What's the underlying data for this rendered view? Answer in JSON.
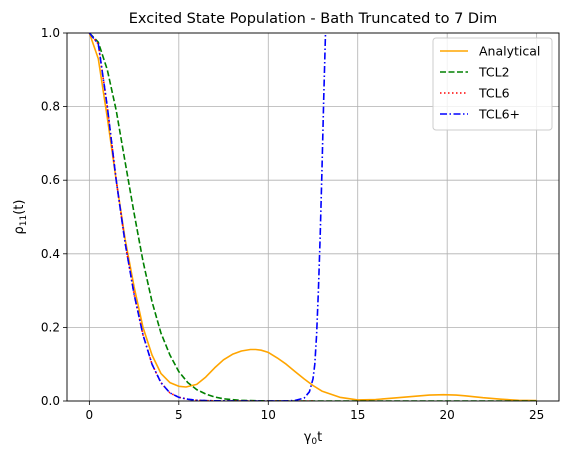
{
  "chart_data": {
    "type": "line",
    "title": "Excited State Population - Bath Truncated to 7 Dim",
    "xlabel": "γ₀t",
    "ylabel": "ρ₁₁(t)",
    "xlim": [
      -1.25,
      26.25
    ],
    "ylim": [
      0,
      1
    ],
    "xticks": [
      "0",
      "5",
      "10",
      "15",
      "20",
      "25"
    ],
    "xtick_values": [
      0,
      5,
      10,
      15,
      20,
      25
    ],
    "yticks": [
      "0.0",
      "0.2",
      "0.4",
      "0.6",
      "0.8",
      "1.0"
    ],
    "ytick_values": [
      0,
      0.2,
      0.4,
      0.6,
      0.8,
      1.0
    ],
    "grid": true,
    "legend_position": "top-right",
    "series": [
      {
        "name": "Analytical",
        "color": "#ffa500",
        "style": "solid",
        "x": [
          0,
          0.5,
          1,
          1.5,
          2,
          2.5,
          3,
          3.5,
          4,
          4.5,
          5,
          5.4,
          6,
          6.5,
          7,
          7.5,
          8,
          8.5,
          9,
          9.3,
          9.6,
          10,
          10.5,
          11,
          11.5,
          12,
          12.5,
          13,
          14,
          15,
          16,
          17,
          18,
          19,
          19.8,
          20.5,
          21,
          22,
          23,
          24,
          25
        ],
        "y": [
          1.0,
          0.93,
          0.77,
          0.6,
          0.44,
          0.31,
          0.2,
          0.125,
          0.075,
          0.05,
          0.04,
          0.038,
          0.045,
          0.065,
          0.09,
          0.112,
          0.127,
          0.136,
          0.14,
          0.14,
          0.138,
          0.132,
          0.117,
          0.1,
          0.08,
          0.06,
          0.042,
          0.027,
          0.01,
          0.003,
          0.004,
          0.008,
          0.012,
          0.016,
          0.017,
          0.016,
          0.014,
          0.009,
          0.005,
          0.002,
          0.001
        ]
      },
      {
        "name": "TCL2",
        "color": "#008000",
        "style": "dashed",
        "x": [
          0,
          0.5,
          1,
          1.5,
          2,
          2.5,
          3,
          3.5,
          4,
          4.5,
          5,
          5.5,
          6,
          6.5,
          7,
          7.5,
          8,
          8.5,
          9,
          9.5,
          10,
          11,
          12,
          13,
          14,
          15,
          16,
          18,
          20,
          22,
          25
        ],
        "y": [
          1.0,
          0.975,
          0.9,
          0.79,
          0.65,
          0.51,
          0.38,
          0.27,
          0.185,
          0.125,
          0.08,
          0.05,
          0.031,
          0.019,
          0.011,
          0.006,
          0.0035,
          0.002,
          0.001,
          0.0006,
          0.0003,
          0.0001,
          5e-05,
          2e-05,
          1e-05,
          0,
          0,
          0,
          0,
          0,
          0
        ]
      },
      {
        "name": "TCL6",
        "color": "#ff0000",
        "style": "dotted",
        "x": [
          0,
          0.5,
          1,
          1.5,
          2,
          2.5,
          3,
          3.5,
          4,
          4.5,
          5,
          5.5,
          6,
          6.5,
          7,
          8,
          9,
          10,
          11,
          12,
          12.5
        ],
        "y": [
          1.0,
          0.97,
          0.8,
          0.6,
          0.43,
          0.29,
          0.18,
          0.1,
          0.05,
          0.022,
          0.01,
          0.005,
          0.002,
          0.001,
          0.0005,
          0.0002,
          0.0001,
          5e-05,
          0,
          0,
          0
        ]
      },
      {
        "name": "TCL6+",
        "color": "#0000ff",
        "style": "dashdot",
        "x": [
          0,
          0.5,
          1,
          1.5,
          2,
          2.5,
          3,
          3.5,
          4,
          4.5,
          5,
          5.5,
          6,
          6.5,
          7,
          8,
          9,
          10,
          11,
          11.5,
          12,
          12.3,
          12.5,
          12.6,
          12.7,
          12.8,
          12.9,
          13.0,
          13.1,
          13.2
        ],
        "y": [
          1.0,
          0.97,
          0.8,
          0.6,
          0.43,
          0.29,
          0.18,
          0.1,
          0.05,
          0.022,
          0.01,
          0.005,
          0.002,
          0.001,
          0.0005,
          0.0002,
          0.0001,
          5e-05,
          0.0002,
          0.0015,
          0.008,
          0.025,
          0.06,
          0.1,
          0.18,
          0.3,
          0.45,
          0.62,
          0.82,
          1.0
        ]
      }
    ]
  }
}
